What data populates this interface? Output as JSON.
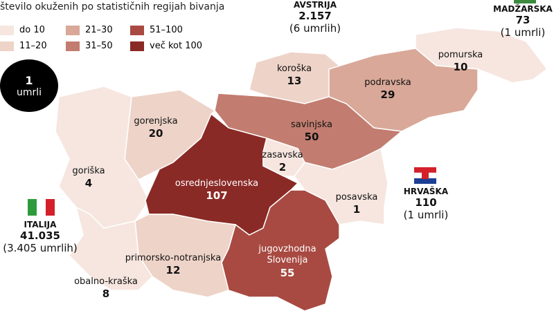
{
  "title": "število okuženih po statističnih regijah bivanja",
  "legend": [
    {
      "label": "do 10",
      "color": "#f6e6df"
    },
    {
      "label": "11–20",
      "color": "#eed3c8"
    },
    {
      "label": "21–30",
      "color": "#d9a898"
    },
    {
      "label": "31–50",
      "color": "#c27d70"
    },
    {
      "label": "51–100",
      "color": "#a84a42"
    },
    {
      "label": "več kot 100",
      "color": "#8a2a26"
    }
  ],
  "death_marker": {
    "count": "1",
    "label": "umrli"
  },
  "regions": [
    {
      "name": "pomurska",
      "cases": 10,
      "color": "#f6e6df"
    },
    {
      "name": "koroška",
      "cases": 13,
      "color": "#eed3c8"
    },
    {
      "name": "podravska",
      "cases": 29,
      "color": "#d9a898"
    },
    {
      "name": "savinjska",
      "cases": 50,
      "color": "#c27d70"
    },
    {
      "name": "gorenjska",
      "cases": 20,
      "color": "#eed3c8"
    },
    {
      "name": "goriška",
      "cases": 4,
      "color": "#f6e6df"
    },
    {
      "name": "osrednjeslovenska",
      "cases": 107,
      "color": "#8a2a26"
    },
    {
      "name": "zasavska",
      "cases": 2,
      "color": "#f6e6df"
    },
    {
      "name": "posavska",
      "cases": 1,
      "color": "#f6e6df"
    },
    {
      "name": "jugovzhodna Slovenija",
      "cases": 55,
      "color": "#a84a42"
    },
    {
      "name": "primorsko-notranjska",
      "cases": 12,
      "color": "#eed3c8"
    },
    {
      "name": "obalno-kraška",
      "cases": 8,
      "color": "#f6e6df"
    }
  ],
  "countries": [
    {
      "name": "AVSTRIJA",
      "cases": "2.157",
      "deaths": "(6 umrlih)"
    },
    {
      "name": "MADŽARSKA",
      "cases": "73",
      "deaths": "(1 umrli)"
    },
    {
      "name": "HRVAŠKA",
      "cases": "110",
      "deaths": "(1 umrli)"
    },
    {
      "name": "ITALIJA",
      "cases": "41.035",
      "deaths": "(3.405 umrlih)"
    }
  ]
}
